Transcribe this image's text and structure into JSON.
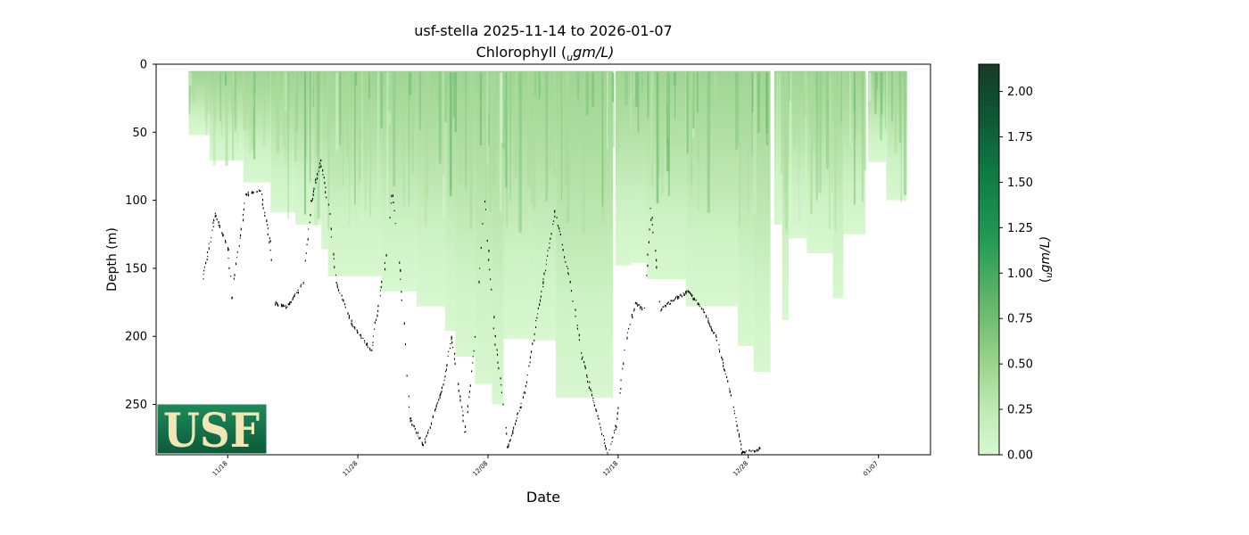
{
  "chart_data": {
    "type": "heatmap",
    "title_line1": "usf-stella 2025-11-14 to 2026-01-07",
    "title_line2_prefix": "Chlorophyll (",
    "title_line2_sub": "u",
    "title_line2_suffix": "gm/L)",
    "xlabel": "Date",
    "ylabel": "Depth (m)",
    "colorbar_label_sub": "u",
    "colorbar_label_suffix": "gm/L)",
    "colorbar_label_prefix": "(",
    "x_tick_labels": [
      "11/18",
      "11/28",
      "12/08",
      "12/18",
      "12/28",
      "01/07"
    ],
    "x_tick_days": [
      4,
      14,
      24,
      34,
      44,
      54
    ],
    "x_range_days": [
      -1.5,
      58
    ],
    "y_tick_labels": [
      "0",
      "50",
      "100",
      "150",
      "200",
      "250"
    ],
    "y_ticks": [
      0,
      50,
      100,
      150,
      200,
      250
    ],
    "ylim": [
      287,
      0
    ],
    "colorbar_ticks": [
      0.0,
      0.25,
      0.5,
      0.75,
      1.0,
      1.25,
      1.5,
      1.75,
      2.0
    ],
    "colorbar_tick_labels": [
      "0.00",
      "0.25",
      "0.50",
      "0.75",
      "1.00",
      "1.25",
      "1.50",
      "1.75",
      "2.00"
    ],
    "colorbar_range": [
      0,
      2.15
    ],
    "colormap": [
      "#d8f8d0",
      "#a8dc98",
      "#6cbc6c",
      "#1a9650",
      "#0f6e3c",
      "#173a24"
    ],
    "profile_segments": [
      {
        "start_day": 1.0,
        "end_day": 2.6,
        "max_depth": 52
      },
      {
        "start_day": 2.6,
        "end_day": 5.2,
        "max_depth": 71
      },
      {
        "start_day": 5.2,
        "end_day": 7.3,
        "max_depth": 87
      },
      {
        "start_day": 7.3,
        "end_day": 9.2,
        "max_depth": 109
      },
      {
        "start_day": 9.2,
        "end_day": 11.2,
        "max_depth": 118
      },
      {
        "start_day": 11.2,
        "end_day": 11.7,
        "max_depth": 136
      },
      {
        "start_day": 11.7,
        "end_day": 15.8,
        "max_depth": 156
      },
      {
        "start_day": 15.8,
        "end_day": 18.5,
        "max_depth": 167
      },
      {
        "start_day": 18.5,
        "end_day": 20.7,
        "max_depth": 178
      },
      {
        "start_day": 20.7,
        "end_day": 21.5,
        "max_depth": 196
      },
      {
        "start_day": 21.5,
        "end_day": 23.0,
        "max_depth": 215
      },
      {
        "start_day": 23.0,
        "end_day": 24.3,
        "max_depth": 235
      },
      {
        "start_day": 24.3,
        "end_day": 25.2,
        "max_depth": 250
      },
      {
        "start_day": 25.2,
        "end_day": 27.2,
        "max_depth": 202
      },
      {
        "start_day": 27.2,
        "end_day": 29.2,
        "max_depth": 203
      },
      {
        "start_day": 29.2,
        "end_day": 33.6,
        "max_depth": 245
      },
      {
        "start_day": 33.8,
        "end_day": 35.0,
        "max_depth": 148
      },
      {
        "start_day": 35.0,
        "end_day": 36.2,
        "max_depth": 146
      },
      {
        "start_day": 36.2,
        "end_day": 39.2,
        "max_depth": 158
      },
      {
        "start_day": 39.2,
        "end_day": 43.2,
        "max_depth": 178
      },
      {
        "start_day": 43.2,
        "end_day": 44.4,
        "max_depth": 207
      },
      {
        "start_day": 44.4,
        "end_day": 45.7,
        "max_depth": 226
      },
      {
        "start_day": 46.0,
        "end_day": 46.6,
        "max_depth": 118
      },
      {
        "start_day": 46.6,
        "end_day": 47.1,
        "max_depth": 188
      },
      {
        "start_day": 47.1,
        "end_day": 48.5,
        "max_depth": 128
      },
      {
        "start_day": 48.5,
        "end_day": 50.5,
        "max_depth": 139
      },
      {
        "start_day": 50.5,
        "end_day": 51.3,
        "max_depth": 172
      },
      {
        "start_day": 51.3,
        "end_day": 53.0,
        "max_depth": 125
      },
      {
        "start_day": 53.2,
        "end_day": 54.6,
        "max_depth": 72
      },
      {
        "start_day": 54.6,
        "end_day": 56.2,
        "max_depth": 100
      }
    ],
    "bottom_trace": [
      {
        "day": 2.0,
        "depth": 160
      },
      {
        "day": 3.0,
        "depth": 110
      },
      {
        "day": 4.0,
        "depth": 135
      },
      {
        "day": 4.3,
        "depth": 170
      },
      {
        "day": 5.0,
        "depth": 120
      },
      {
        "day": 5.4,
        "depth": 95
      },
      {
        "day": 6.5,
        "depth": 92
      },
      {
        "day": 7.2,
        "depth": 130
      },
      {
        "day": 7.6,
        "depth": 175
      },
      {
        "day": 8.5,
        "depth": 178
      },
      {
        "day": 9.8,
        "depth": 160
      },
      {
        "day": 10.4,
        "depth": 100
      },
      {
        "day": 11.1,
        "depth": 70
      },
      {
        "day": 11.8,
        "depth": 110
      },
      {
        "day": 12.3,
        "depth": 160
      },
      {
        "day": 13.5,
        "depth": 190
      },
      {
        "day": 15.0,
        "depth": 210
      },
      {
        "day": 16.0,
        "depth": 150
      },
      {
        "day": 16.6,
        "depth": 90
      },
      {
        "day": 17.2,
        "depth": 150
      },
      {
        "day": 18.0,
        "depth": 260
      },
      {
        "day": 19.0,
        "depth": 280
      },
      {
        "day": 20.4,
        "depth": 240
      },
      {
        "day": 21.2,
        "depth": 200
      },
      {
        "day": 22.2,
        "depth": 270
      },
      {
        "day": 23.0,
        "depth": 200
      },
      {
        "day": 23.7,
        "depth": 100
      },
      {
        "day": 24.5,
        "depth": 200
      },
      {
        "day": 25.5,
        "depth": 280
      },
      {
        "day": 26.8,
        "depth": 240
      },
      {
        "day": 28.2,
        "depth": 160
      },
      {
        "day": 29.1,
        "depth": 108
      },
      {
        "day": 30.3,
        "depth": 160
      },
      {
        "day": 31.2,
        "depth": 215
      },
      {
        "day": 32.3,
        "depth": 255
      },
      {
        "day": 33.2,
        "depth": 287
      },
      {
        "day": 33.8,
        "depth": 265
      },
      {
        "day": 34.6,
        "depth": 200
      },
      {
        "day": 35.3,
        "depth": 175
      },
      {
        "day": 36.0,
        "depth": 180
      },
      {
        "day": 36.5,
        "depth": 105
      },
      {
        "day": 37.2,
        "depth": 180
      },
      {
        "day": 38.3,
        "depth": 172
      },
      {
        "day": 39.4,
        "depth": 166
      },
      {
        "day": 40.6,
        "depth": 182
      },
      {
        "day": 41.5,
        "depth": 200
      },
      {
        "day": 42.6,
        "depth": 240
      },
      {
        "day": 43.5,
        "depth": 285
      },
      {
        "day": 44.9,
        "depth": 282
      }
    ]
  }
}
